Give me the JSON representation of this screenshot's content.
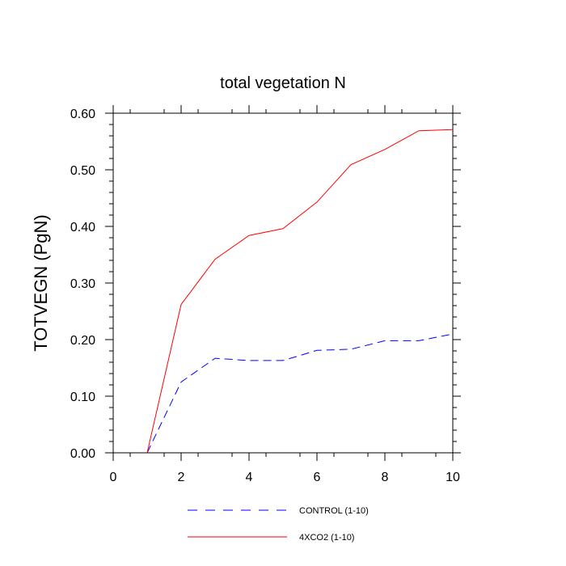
{
  "chart_data": {
    "type": "line",
    "title": "total vegetation N",
    "xlabel": "",
    "ylabel": "TOTVEGN  (PgN)",
    "xlim": [
      0,
      10
    ],
    "ylim": [
      0,
      0.6
    ],
    "x_ticks": [
      0,
      2,
      4,
      6,
      8,
      10
    ],
    "x_tick_labels": [
      "0",
      "2",
      "4",
      "6",
      "8",
      "10"
    ],
    "y_ticks": [
      0,
      0.1,
      0.2,
      0.3,
      0.4,
      0.5,
      0.6
    ],
    "y_tick_labels": [
      "0.00",
      "0.10",
      "0.20",
      "0.30",
      "0.40",
      "0.50",
      "0.60"
    ],
    "grid": false,
    "legend_position": "bottom",
    "series": [
      {
        "name": "CONTROL (1-10)",
        "color": "#0000ff",
        "style": "dashed",
        "x": [
          1,
          2,
          3,
          4,
          5,
          6,
          7,
          8,
          9,
          10
        ],
        "values": [
          0.0,
          0.125,
          0.167,
          0.163,
          0.163,
          0.181,
          0.183,
          0.198,
          0.198,
          0.21
        ]
      },
      {
        "name": "4XCO2 (1-10)",
        "color": "#ff0000",
        "style": "solid",
        "x": [
          1,
          2,
          3,
          4,
          5,
          6,
          7,
          8,
          9,
          10
        ],
        "values": [
          0.0,
          0.262,
          0.342,
          0.384,
          0.396,
          0.443,
          0.509,
          0.536,
          0.569,
          0.571
        ]
      }
    ]
  }
}
